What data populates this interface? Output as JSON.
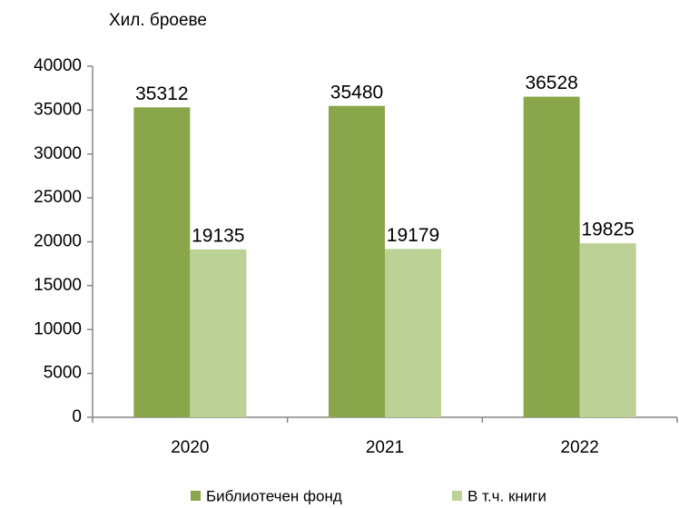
{
  "chart_data": {
    "type": "bar",
    "y_axis_label": "Хил. броеве",
    "categories": [
      "2020",
      "2021",
      "2022"
    ],
    "series": [
      {
        "name": "Библиотечен фонд",
        "color": "#8aa64b",
        "values": [
          35312,
          35480,
          36528
        ]
      },
      {
        "name": "В т.ч. книги",
        "color": "#bcd195",
        "values": [
          19135,
          19179,
          19825
        ]
      }
    ],
    "ylim": [
      0,
      40000
    ],
    "yticks": [
      0,
      5000,
      10000,
      15000,
      20000,
      25000,
      30000,
      35000,
      40000
    ],
    "grid": false,
    "legend": "bottom"
  }
}
